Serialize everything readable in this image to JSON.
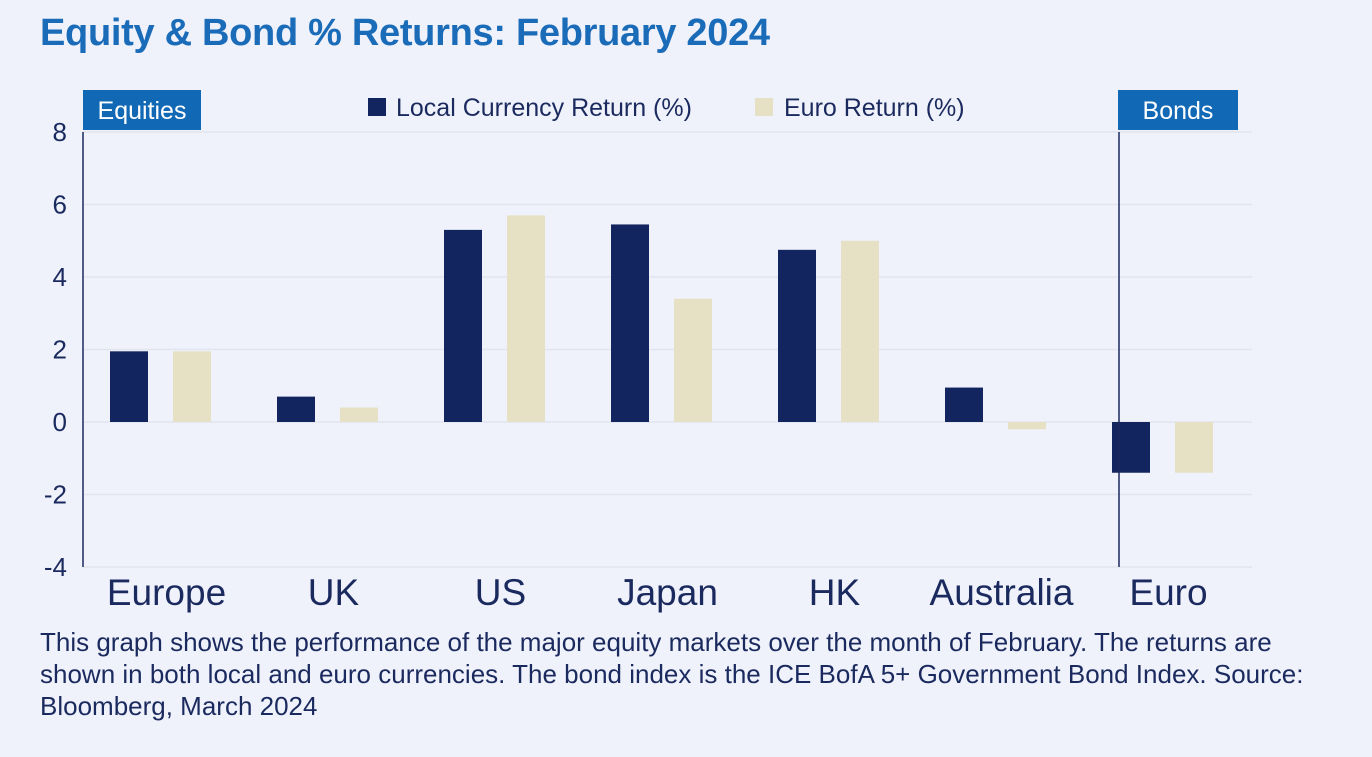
{
  "title": "Equity & Bond % Returns: February 2024",
  "caption": "This graph shows the performance of the major equity markets over the month of February. The returns are shown in both local and euro currencies. The bond index is the ICE BofA 5+ Government Bond Index. Source: Bloomberg, March 2024",
  "colors": {
    "local": "#13255f",
    "euro": "#e6e1c4",
    "tag": "#1169b6",
    "grid": "#e2e5ee",
    "axis": "#1b2a5e"
  },
  "chart_data": {
    "type": "bar",
    "categories": [
      "Europe",
      "UK",
      "US",
      "Japan",
      "HK",
      "Australia",
      "Euro"
    ],
    "series": [
      {
        "name": "Local Currency Return (%)",
        "values": [
          1.95,
          0.7,
          5.3,
          5.45,
          4.75,
          0.95,
          -1.4
        ]
      },
      {
        "name": "Euro Return (%)",
        "values": [
          1.95,
          0.4,
          5.7,
          3.4,
          5.0,
          -0.2,
          -1.4
        ]
      }
    ],
    "ylim": [
      -4,
      8
    ],
    "yticks": [
      8,
      6,
      4,
      2,
      0,
      -2,
      -4
    ],
    "grid": true,
    "legend": "top-center",
    "group_labels": {
      "equities": "Equities",
      "bonds": "Bonds"
    }
  }
}
